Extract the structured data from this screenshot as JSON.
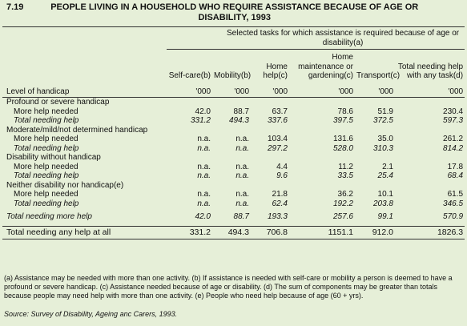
{
  "title": {
    "number": "7.19",
    "text": "PEOPLE LIVING IN A HOUSEHOLD WHO REQUIRE ASSISTANCE BECAUSE OF AGE OR DISABILITY, 1993"
  },
  "table": {
    "spanner": "Selected tasks for which assistance is required because of age or disability(a)",
    "row_header": "Level of handicap",
    "columns": [
      {
        "label": "Self-care(b)",
        "unit": "'000"
      },
      {
        "label": "Mobility(b)",
        "unit": "'000"
      },
      {
        "label": "Home help(c)",
        "unit": "'000"
      },
      {
        "label": "Home maintenance or gardening(c)",
        "unit": "'000"
      },
      {
        "label": "Transport(c)",
        "unit": "'000"
      },
      {
        "label": "Total needing help with any task(d)",
        "unit": "'000"
      }
    ],
    "sections": [
      {
        "heading": "Profound or severe handicap",
        "rows": [
          {
            "label": "More help needed",
            "values": [
              "42.0",
              "88.7",
              "63.7",
              "78.6",
              "51.9",
              "230.4"
            ]
          },
          {
            "label": "Total needing help",
            "values": [
              "331.2",
              "494.3",
              "337.6",
              "397.5",
              "372.5",
              "597.3"
            ]
          }
        ]
      },
      {
        "heading": "Moderate/mild/not determined handicap",
        "rows": [
          {
            "label": "More help needed",
            "values": [
              "n.a.",
              "n.a.",
              "103.4",
              "131.6",
              "35.0",
              "261.2"
            ]
          },
          {
            "label": "Total needing help",
            "values": [
              "n.a.",
              "n.a.",
              "297.2",
              "528.0",
              "310.3",
              "814.2"
            ]
          }
        ]
      },
      {
        "heading": "Disability without handicap",
        "rows": [
          {
            "label": "More help needed",
            "values": [
              "n.a.",
              "n.a.",
              "4.4",
              "11.2",
              "2.1",
              "17.8"
            ]
          },
          {
            "label": "Total needing help",
            "values": [
              "n.a.",
              "n.a.",
              "9.6",
              "33.5",
              "25.4",
              "68.4"
            ]
          }
        ]
      },
      {
        "heading": "Neither disability nor handicap(e)",
        "rows": [
          {
            "label": "More help needed",
            "values": [
              "n.a.",
              "n.a.",
              "21.8",
              "36.2",
              "10.1",
              "61.5"
            ]
          },
          {
            "label": "Total needing help",
            "values": [
              "n.a.",
              "n.a.",
              "62.4",
              "192.2",
              "203.8",
              "346.5"
            ]
          }
        ]
      }
    ],
    "totals": [
      {
        "label": "Total needing more help",
        "values": [
          "42.0",
          "88.7",
          "193.3",
          "257.6",
          "99.1",
          "570.9"
        ]
      },
      {
        "label": "Total needing any help at all",
        "values": [
          "331.2",
          "494.3",
          "706.8",
          "1151.1",
          "912.0",
          "1826.3"
        ]
      }
    ]
  },
  "footnotes": "(a) Assistance may be needed with more than one activity. (b) If assistance is needed with self-care or mobility a person is deemed to have a profound or severe handicap. (c) Assistance needed because of age or disability. (d) The sum of components may be greater than totals because people may need help with more than one activity. (e) People who need help because of age (60 + yrs).",
  "source": "Source: Survey of Disability, Ageing anc Carers, 1993."
}
